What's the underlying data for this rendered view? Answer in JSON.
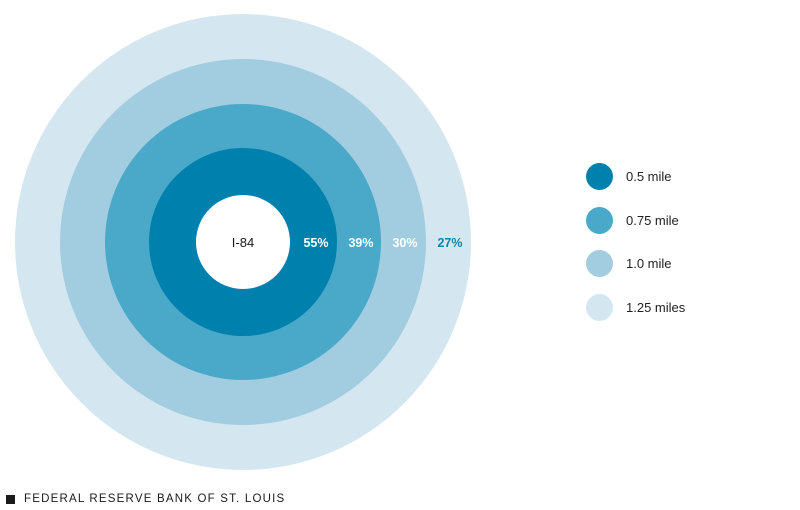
{
  "diagram": {
    "center_label": "I-84",
    "rings": [
      {
        "distance_label": "1.25 miles",
        "percent_label": "27%",
        "color": "#d4e7f1",
        "label_color": "#0a83ad"
      },
      {
        "distance_label": "1.0 mile",
        "percent_label": "30%",
        "color": "#a2cde0",
        "label_color": "#ffffff"
      },
      {
        "distance_label": "0.75 mile",
        "percent_label": "39%",
        "color": "#4aa8c8",
        "label_color": "#ffffff"
      },
      {
        "distance_label": "0.5 mile",
        "percent_label": "55%",
        "color": "#0081ad",
        "label_color": "#ffffff"
      }
    ]
  },
  "legend": {
    "items": [
      {
        "label": "0.5 mile",
        "color": "#0081ad"
      },
      {
        "label": "0.75 mile",
        "color": "#4aa8c8"
      },
      {
        "label": "1.0 mile",
        "color": "#a2cde0"
      },
      {
        "label": "1.25 miles",
        "color": "#d4e7f1"
      }
    ]
  },
  "footer": {
    "source": "FEDERAL RESERVE BANK OF ST. LOUIS"
  }
}
